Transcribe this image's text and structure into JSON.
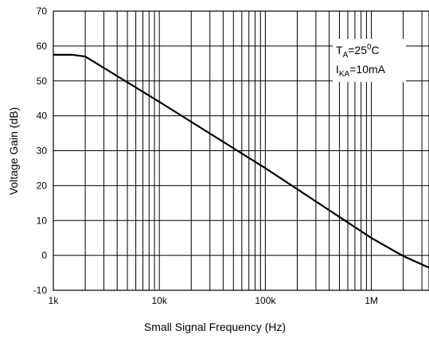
{
  "chart_data": {
    "type": "line",
    "xlabel": "Small Signal Frequency (Hz)",
    "ylabel": "Voltage Gain (dB)",
    "x_scale": "log",
    "xlim": [
      1000,
      3500000
    ],
    "ylim": [
      -10,
      70
    ],
    "x_ticks": [
      {
        "value": 1000,
        "label": "1k"
      },
      {
        "value": 10000,
        "label": "10k"
      },
      {
        "value": 100000,
        "label": "100k"
      },
      {
        "value": 1000000,
        "label": "1M"
      }
    ],
    "y_ticks": [
      -10,
      0,
      10,
      20,
      30,
      40,
      50,
      60,
      70
    ],
    "grid": true,
    "series": [
      {
        "color": "#000000",
        "x": [
          1000,
          1500,
          2000,
          10000,
          100000,
          1000000,
          2000000,
          3500000
        ],
        "y": [
          57.5,
          57.5,
          57,
          44,
          25,
          5,
          -0.2,
          -3.5
        ]
      }
    ],
    "annotation": {
      "line1": {
        "main": "T",
        "sub": "A",
        "rest": "=25",
        "sup": "0",
        "end": "C"
      },
      "line2": {
        "main": "I",
        "sub": "KA",
        "rest": "=10mA"
      }
    }
  }
}
